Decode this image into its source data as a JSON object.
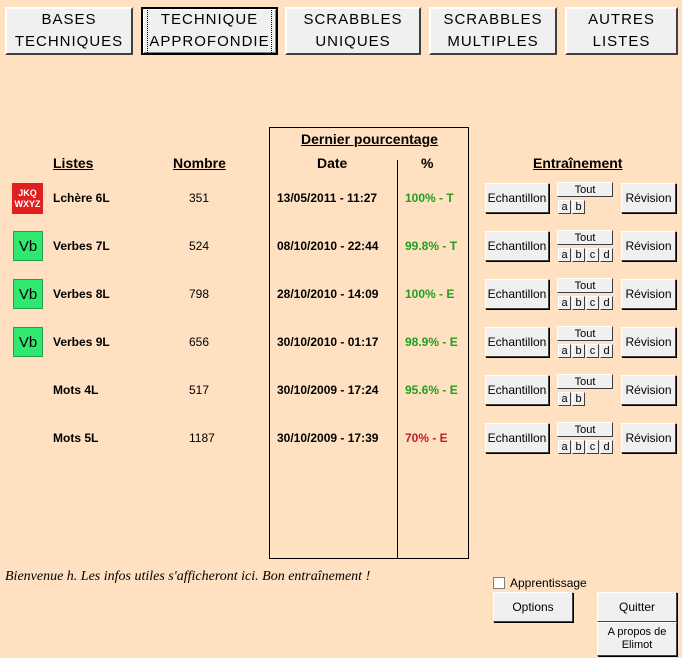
{
  "nav": {
    "bases": {
      "line1": "BASES",
      "line2": "TECHNIQUES"
    },
    "technique": {
      "line1": "TECHNIQUE",
      "line2": "APPROFONDIE"
    },
    "scrabbles_uniques": {
      "line1": "SCRABBLES",
      "line2": "UNIQUES"
    },
    "scrabbles_multiples": {
      "line1": "SCRABBLES",
      "line2": "MULTIPLES"
    },
    "autres": {
      "line1": "AUTRES",
      "line2": "LISTES"
    }
  },
  "headers": {
    "listes": "Listes",
    "nombre": "Nombre",
    "dernier": "Dernier pourcentage",
    "date": "Date",
    "pct": "%",
    "entrainement": "Entraînement"
  },
  "rows": [
    {
      "icon": "jkq",
      "icon_l1": "JKQ",
      "icon_l2": "WXYZ",
      "name": "Lchère 6L",
      "count": "351",
      "date": "13/05/2011 - 11:27",
      "pct": "100% - T",
      "pct_color": "green",
      "letters": [
        "a",
        "b"
      ]
    },
    {
      "icon": "vb",
      "icon_text": "Vb",
      "name": "Verbes 7L",
      "count": "524",
      "date": "08/10/2010 - 22:44",
      "pct": "99.8% - T",
      "pct_color": "green",
      "letters": [
        "a",
        "b",
        "c",
        "d"
      ]
    },
    {
      "icon": "vb",
      "icon_text": "Vb",
      "name": "Verbes 8L",
      "count": "798",
      "date": "28/10/2010 - 14:09",
      "pct": "100% - E",
      "pct_color": "green",
      "letters": [
        "a",
        "b",
        "c",
        "d"
      ]
    },
    {
      "icon": "vb",
      "icon_text": "Vb",
      "name": "Verbes 9L",
      "count": "656",
      "date": "30/10/2010 - 01:17",
      "pct": "98.9% - E",
      "pct_color": "green",
      "letters": [
        "a",
        "b",
        "c",
        "d"
      ]
    },
    {
      "icon": "",
      "name": "Mots 4L",
      "count": "517",
      "date": "30/10/2009 - 17:24",
      "pct": "95.6% - E",
      "pct_color": "green",
      "letters": [
        "a",
        "b"
      ]
    },
    {
      "icon": "",
      "name": "Mots 5L",
      "count": "1187",
      "date": "30/10/2009 - 17:39",
      "pct": "70% - E",
      "pct_color": "red",
      "letters": [
        "a",
        "b",
        "c",
        "d"
      ]
    }
  ],
  "training": {
    "echantillon": "Echantillon",
    "tout": "Tout",
    "revision": "Révision"
  },
  "colors": {
    "background": "#ffe0c0",
    "green_pct": "#20a020",
    "red_pct": "#c02020",
    "vb_icon": "#30e870",
    "jkq_icon": "#e02020"
  },
  "footer": {
    "message": "Bienvenue h. Les infos utiles s'afficheront ici. Bon entraînement !",
    "apprentissage": "Apprentissage",
    "options": "Options",
    "quitter": "Quitter",
    "apropos_l1": "A propos de",
    "apropos_l2": "Elimot"
  }
}
